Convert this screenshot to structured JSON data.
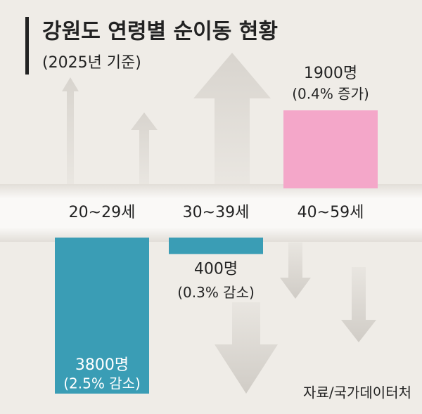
{
  "chart_data": {
    "type": "bar",
    "title": "강원도 연령별 순이동 현황",
    "subtitle": "(2025년 기준)",
    "source": "자료/국가데이터처",
    "categories": [
      "20~29세",
      "30~39세",
      "40~59세"
    ],
    "values": [
      -3800,
      -400,
      1900
    ],
    "value_labels": [
      "3800명",
      "400명",
      "1900명"
    ],
    "change_labels": [
      "(2.5% 감소)",
      "(0.3% 감소)",
      "(0.4% 증가)"
    ],
    "colors": [
      "#3a9db5",
      "#3a9db5",
      "#f4a7c9"
    ]
  }
}
